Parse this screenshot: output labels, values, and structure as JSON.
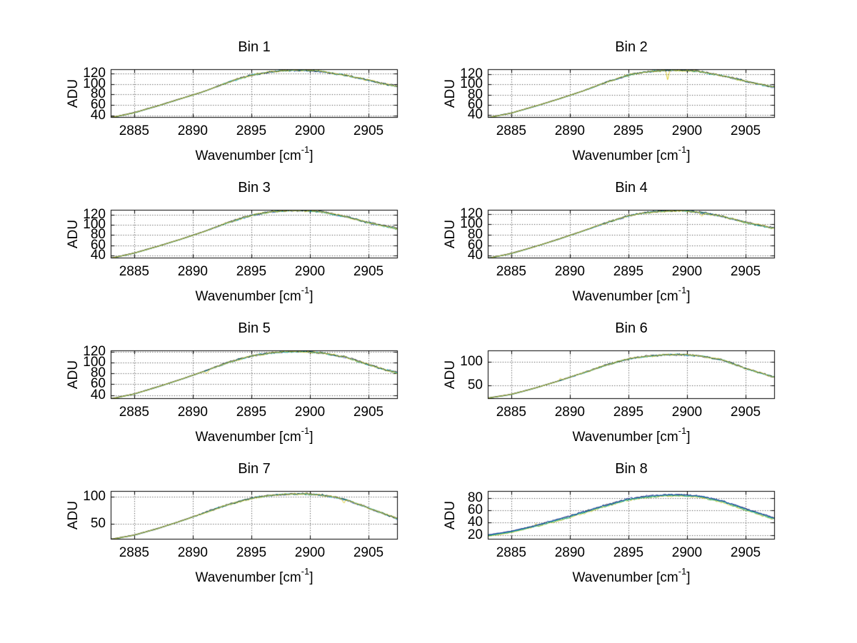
{
  "figure": {
    "background": "#ffffff",
    "grid_color": "#333333",
    "axis_color": "#000000",
    "text_color": "#000000"
  },
  "control_wavenumbers": [
    2883,
    2885,
    2887,
    2889,
    2891,
    2893,
    2895,
    2896.5,
    2898,
    2899.5,
    2901,
    2903,
    2905,
    2907.5
  ],
  "chart_data": [
    {
      "type": "line",
      "title": "Bin 1",
      "ylabel": "ADU",
      "xlabel_base": "Wavenumber [cm",
      "xlabel_sup": "-1",
      "xlabel_close": "]",
      "xlim": [
        2883,
        2907.5
      ],
      "ylim": [
        35.5,
        128.5
      ],
      "xticks": [
        2885,
        2890,
        2895,
        2900,
        2905
      ],
      "yticks": [
        40,
        60,
        80,
        100,
        120
      ],
      "grid": "dotted",
      "legend": "none",
      "adu_control": [
        35.5,
        45,
        58,
        72,
        86,
        103,
        117,
        123,
        126,
        126.5,
        124,
        117,
        107,
        95
      ],
      "seed": 11,
      "noise_from": 2892,
      "noise_amp": 1.5,
      "noise_base": 0.25,
      "spikes": [],
      "traces": [
        {
          "name": "blue",
          "color": "#2743c4",
          "offset": -0.3,
          "amp": 0.9
        },
        {
          "name": "green",
          "color": "#3fae49",
          "offset": -0.1,
          "amp": 0.9
        },
        {
          "name": "cyan",
          "color": "#00b7c9",
          "offset": 0.2,
          "amp": 0.95
        },
        {
          "name": "black",
          "color": "#1b1b1b",
          "offset": 0.5,
          "amp": 1.05
        },
        {
          "name": "yellow",
          "color": "#e0cd2a",
          "offset": 0.1,
          "amp": 1.15
        }
      ]
    },
    {
      "type": "line",
      "title": "Bin 2",
      "ylabel": "ADU",
      "xlabel_base": "Wavenumber [cm",
      "xlabel_sup": "-1",
      "xlabel_close": "]",
      "xlim": [
        2883,
        2907.5
      ],
      "ylim": [
        35,
        129.5
      ],
      "xticks": [
        2885,
        2890,
        2895,
        2900,
        2905
      ],
      "yticks": [
        40,
        60,
        80,
        100,
        120
      ],
      "grid": "dotted",
      "legend": "none",
      "adu_control": [
        35,
        44,
        57,
        71,
        86,
        103,
        118,
        124,
        127,
        127.5,
        125,
        117,
        106,
        94
      ],
      "seed": 22,
      "noise_from": 2892,
      "noise_amp": 1.5,
      "noise_base": 0.25,
      "spikes": [
        {
          "x": 2898.35,
          "dy": -16,
          "w": 0.1
        }
      ],
      "traces": [
        {
          "name": "blue",
          "color": "#2743c4",
          "offset": -0.3,
          "amp": 0.9
        },
        {
          "name": "green",
          "color": "#3fae49",
          "offset": -0.1,
          "amp": 0.9
        },
        {
          "name": "cyan",
          "color": "#00b7c9",
          "offset": 0.2,
          "amp": 0.95
        },
        {
          "name": "black",
          "color": "#1b1b1b",
          "offset": 0.5,
          "amp": 1.05
        },
        {
          "name": "yellow",
          "color": "#e0cd2a",
          "offset": 0.1,
          "amp": 1.15
        }
      ]
    },
    {
      "type": "line",
      "title": "Bin 3",
      "ylabel": "ADU",
      "xlabel_base": "Wavenumber [cm",
      "xlabel_sup": "-1",
      "xlabel_close": "]",
      "xlim": [
        2883,
        2907.5
      ],
      "ylim": [
        35,
        129
      ],
      "xticks": [
        2885,
        2890,
        2895,
        2900,
        2905
      ],
      "yticks": [
        40,
        60,
        80,
        100,
        120
      ],
      "grid": "dotted",
      "legend": "none",
      "adu_control": [
        35,
        45,
        58,
        72,
        87,
        104,
        118,
        124.5,
        127,
        127.5,
        125,
        116,
        104,
        92
      ],
      "seed": 33,
      "noise_from": 2892,
      "noise_amp": 1.5,
      "noise_base": 0.25,
      "spikes": [],
      "traces": [
        {
          "name": "blue",
          "color": "#2743c4",
          "offset": -0.3,
          "amp": 0.9
        },
        {
          "name": "green",
          "color": "#3fae49",
          "offset": -0.1,
          "amp": 0.9
        },
        {
          "name": "cyan",
          "color": "#00b7c9",
          "offset": 0.2,
          "amp": 0.95
        },
        {
          "name": "black",
          "color": "#1b1b1b",
          "offset": 0.5,
          "amp": 1.05
        },
        {
          "name": "yellow",
          "color": "#e0cd2a",
          "offset": 0.1,
          "amp": 1.15
        }
      ]
    },
    {
      "type": "line",
      "title": "Bin 4",
      "ylabel": "ADU",
      "xlabel_base": "Wavenumber [cm",
      "xlabel_sup": "-1",
      "xlabel_close": "]",
      "xlim": [
        2883,
        2907.5
      ],
      "ylim": [
        35,
        127.5
      ],
      "xticks": [
        2885,
        2890,
        2895,
        2900,
        2905
      ],
      "yticks": [
        40,
        60,
        80,
        100,
        120
      ],
      "grid": "dotted",
      "legend": "none",
      "adu_control": [
        35,
        44,
        57,
        71,
        86,
        102,
        116,
        122,
        125,
        125.5,
        123,
        115,
        103,
        92
      ],
      "seed": 44,
      "noise_from": 2892,
      "noise_amp": 1.5,
      "noise_base": 0.25,
      "spikes": [
        {
          "x": 2901.3,
          "dy": -4.5,
          "w": 0.15
        }
      ],
      "traces": [
        {
          "name": "blue",
          "color": "#2743c4",
          "offset": -0.3,
          "amp": 0.9
        },
        {
          "name": "green",
          "color": "#3fae49",
          "offset": -0.1,
          "amp": 0.9
        },
        {
          "name": "cyan",
          "color": "#00b7c9",
          "offset": 0.2,
          "amp": 0.95
        },
        {
          "name": "black",
          "color": "#1b1b1b",
          "offset": 0.5,
          "amp": 1.05
        },
        {
          "name": "yellow",
          "color": "#e0cd2a",
          "offset": 0.1,
          "amp": 1.15
        }
      ]
    },
    {
      "type": "line",
      "title": "Bin 5",
      "ylabel": "ADU",
      "xlabel_base": "Wavenumber [cm",
      "xlabel_sup": "-1",
      "xlabel_close": "]",
      "xlim": [
        2883,
        2907.5
      ],
      "ylim": [
        33,
        122.5
      ],
      "xticks": [
        2885,
        2890,
        2895,
        2900,
        2905
      ],
      "yticks": [
        40,
        60,
        80,
        100,
        120
      ],
      "grid": "dotted",
      "legend": "none",
      "adu_control": [
        33,
        42,
        55,
        69,
        84,
        100,
        112,
        117.5,
        120,
        120.5,
        118,
        110,
        96,
        80
      ],
      "seed": 55,
      "noise_from": 2892,
      "noise_amp": 1.5,
      "noise_base": 0.25,
      "spikes": [
        {
          "x": 2891.2,
          "dy": -5,
          "w": 0.18
        }
      ],
      "traces": [
        {
          "name": "blue",
          "color": "#2743c4",
          "offset": -0.3,
          "amp": 0.9
        },
        {
          "name": "green",
          "color": "#3fae49",
          "offset": -0.1,
          "amp": 0.9
        },
        {
          "name": "cyan",
          "color": "#00b7c9",
          "offset": 0.2,
          "amp": 0.95
        },
        {
          "name": "black",
          "color": "#1b1b1b",
          "offset": 0.5,
          "amp": 1.05
        },
        {
          "name": "yellow",
          "color": "#e0cd2a",
          "offset": 0.1,
          "amp": 1.15
        }
      ]
    },
    {
      "type": "line",
      "title": "Bin 6",
      "ylabel": "ADU",
      "xlabel_base": "Wavenumber [cm",
      "xlabel_sup": "-1",
      "xlabel_close": "]",
      "xlim": [
        2883,
        2907.5
      ],
      "ylim": [
        21.5,
        124
      ],
      "xticks": [
        2885,
        2890,
        2895,
        2900,
        2905
      ],
      "yticks": [
        50,
        100
      ],
      "grid": "dotted",
      "legend": "none",
      "adu_control": [
        23,
        31,
        44,
        59,
        75,
        92,
        106,
        111,
        114.5,
        115,
        112.5,
        104,
        86,
        67
      ],
      "seed": 66,
      "noise_from": 2890,
      "noise_amp": 1.4,
      "noise_base": 0.25,
      "spikes": [
        {
          "x": 2889.2,
          "dy": 4.5,
          "w": 0.1
        }
      ],
      "traces": [
        {
          "name": "blue",
          "color": "#2743c4",
          "offset": -0.3,
          "amp": 0.9
        },
        {
          "name": "green",
          "color": "#3fae49",
          "offset": -0.1,
          "amp": 0.9
        },
        {
          "name": "cyan",
          "color": "#00b7c9",
          "offset": 0.2,
          "amp": 0.95
        },
        {
          "name": "black",
          "color": "#1b1b1b",
          "offset": 0.5,
          "amp": 1.05
        },
        {
          "name": "yellow",
          "color": "#e0cd2a",
          "offset": 0.1,
          "amp": 1.15
        }
      ]
    },
    {
      "type": "line",
      "title": "Bin 7",
      "ylabel": "ADU",
      "xlabel_base": "Wavenumber [cm",
      "xlabel_sup": "-1",
      "xlabel_close": "]",
      "xlim": [
        2883,
        2907.5
      ],
      "ylim": [
        21,
        110.5
      ],
      "xticks": [
        2885,
        2890,
        2895,
        2900,
        2905
      ],
      "yticks": [
        50,
        100
      ],
      "grid": "dotted",
      "legend": "none",
      "adu_control": [
        21,
        29,
        41,
        55,
        70,
        85,
        97,
        102,
        104.5,
        105,
        103,
        95,
        79,
        59
      ],
      "seed": 77,
      "noise_from": 2890,
      "noise_amp": 1.4,
      "noise_base": 0.25,
      "spikes": [
        {
          "x": 2902.9,
          "dy": -6,
          "w": 0.14
        }
      ],
      "traces": [
        {
          "name": "blue",
          "color": "#2743c4",
          "offset": -0.3,
          "amp": 0.9
        },
        {
          "name": "green",
          "color": "#3fae49",
          "offset": -0.1,
          "amp": 0.9
        },
        {
          "name": "cyan",
          "color": "#00b7c9",
          "offset": 0.2,
          "amp": 0.95
        },
        {
          "name": "black",
          "color": "#1b1b1b",
          "offset": 0.5,
          "amp": 1.05
        },
        {
          "name": "yellow",
          "color": "#e0cd2a",
          "offset": 0.1,
          "amp": 1.15
        }
      ]
    },
    {
      "type": "line",
      "title": "Bin 8",
      "ylabel": "ADU",
      "xlabel_base": "Wavenumber [cm",
      "xlabel_sup": "-1",
      "xlabel_close": "]",
      "xlim": [
        2883,
        2907.5
      ],
      "ylim": [
        13,
        91
      ],
      "xticks": [
        2885,
        2890,
        2895,
        2900,
        2905
      ],
      "yticks": [
        20,
        40,
        60,
        80
      ],
      "grid": "dotted",
      "legend": "none",
      "adu_control": [
        19,
        25,
        34,
        44,
        55,
        67,
        77,
        81,
        83.5,
        84,
        82,
        74,
        61,
        46
      ],
      "seed": 88,
      "noise_from": 2886,
      "noise_amp": 1.2,
      "noise_base": 0.3,
      "spikes": [
        {
          "x": 2887.1,
          "dy": 5,
          "w": 0.1
        }
      ],
      "traces": [
        {
          "name": "black",
          "color": "#1b1b1b",
          "offset": 1.0,
          "amp": 1.0
        },
        {
          "name": "yellow",
          "color": "#e0cd2a",
          "offset": -1.0,
          "amp": 1.1
        },
        {
          "name": "green",
          "color": "#3fae49",
          "offset": -0.3,
          "amp": 1.0
        },
        {
          "name": "cyan",
          "color": "#00b7c9",
          "offset": 0.5,
          "amp": 1.0
        },
        {
          "name": "navy",
          "color": "#041f9e",
          "offset": 1.4,
          "amp": 1.0
        }
      ]
    }
  ]
}
